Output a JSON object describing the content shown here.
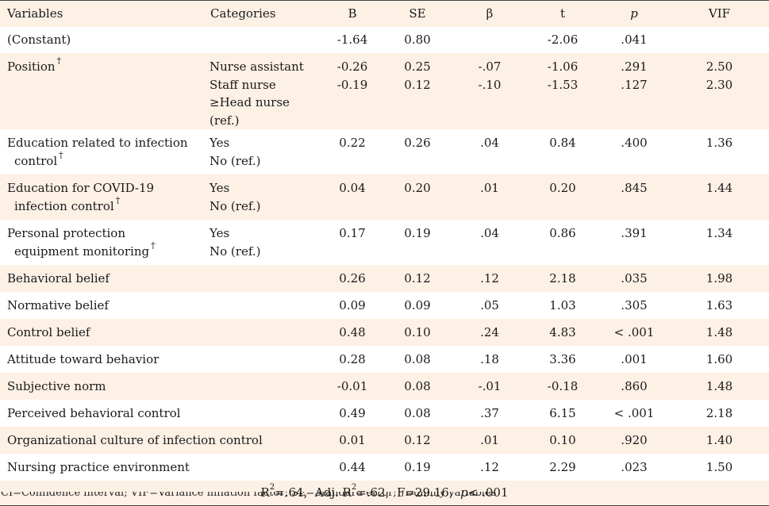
{
  "headers": {
    "variables": "Variables",
    "categories": "Categories",
    "b": "B",
    "se": "SE",
    "beta": "β",
    "t": "t",
    "p": "p",
    "vif": "VIF"
  },
  "dagger": "†",
  "rows": {
    "constant": {
      "label": "(Constant)",
      "b": "-1.64",
      "se": "0.80",
      "t": "-2.06",
      "p": ".041"
    },
    "position": {
      "label": "Position",
      "cat1": "Nurse assistant",
      "b1": "-0.26",
      "se1": "0.25",
      "beta1": "-.07",
      "t1": "-1.06",
      "p1": ".291",
      "vif1": "2.50",
      "cat2": "Staff nurse",
      "b2": "-0.19",
      "se2": "0.12",
      "beta2": "-.10",
      "t2": "-1.53",
      "p2": ".127",
      "vif2": "2.30",
      "cat3": "≥Head nurse (ref.)"
    },
    "edu_infection": {
      "label1": "Education related to infection",
      "label2": "control",
      "cat1": "Yes",
      "cat2": "No (ref.)",
      "b": "0.22",
      "se": "0.26",
      "beta": ".04",
      "t": "0.84",
      "p": ".400",
      "vif": "1.36"
    },
    "edu_covid": {
      "label1": "Education for COVID-19",
      "label2": "infection control",
      "cat1": "Yes",
      "cat2": "No (ref.)",
      "b": "0.04",
      "se": "0.20",
      "beta": ".01",
      "t": "0.20",
      "p": ".845",
      "vif": "1.44"
    },
    "ppe": {
      "label1": "Personal protection",
      "label2": "equipment monitoring",
      "cat1": "Yes",
      "cat2": "No (ref.)",
      "b": "0.17",
      "se": "0.19",
      "beta": ".04",
      "t": "0.86",
      "p": ".391",
      "vif": "1.34"
    },
    "behavioral_belief": {
      "label": "Behavioral belief",
      "b": "0.26",
      "se": "0.12",
      "beta": ".12",
      "t": "2.18",
      "p": ".035",
      "vif": "1.98"
    },
    "normative_belief": {
      "label": "Normative belief",
      "b": "0.09",
      "se": "0.09",
      "beta": ".05",
      "t": "1.03",
      "p": ".305",
      "vif": "1.63"
    },
    "control_belief": {
      "label": "Control belief",
      "b": "0.48",
      "se": "0.10",
      "beta": ".24",
      "t": "4.83",
      "p": "< .001",
      "vif": "1.48"
    },
    "attitude": {
      "label": "Attitude toward behavior",
      "b": "0.28",
      "se": "0.08",
      "beta": ".18",
      "t": "3.36",
      "p": ".001",
      "vif": "1.60"
    },
    "subjective_norm": {
      "label": "Subjective norm",
      "b": "-0.01",
      "se": "0.08",
      "beta": "-.01",
      "t": "-0.18",
      "p": ".860",
      "vif": "1.48"
    },
    "pbc": {
      "label": "Perceived behavioral control",
      "b": "0.49",
      "se": "0.08",
      "beta": ".37",
      "t": "6.15",
      "p": "< .001",
      "vif": "2.18"
    },
    "org_culture": {
      "label": "Organizational culture of infection control",
      "b": "0.01",
      "se": "0.12",
      "beta": ".01",
      "t": "0.10",
      "p": ".920",
      "vif": "1.40"
    },
    "nursing_env": {
      "label": "Nursing practice environment",
      "b": "0.44",
      "se": "0.19",
      "beta": ".12",
      "t": "2.29",
      "p": ".023",
      "vif": "1.50"
    }
  },
  "summary": {
    "r2_prefix": "R",
    "r2_exp": "2",
    "r2_value": "=.64,",
    "adj_prefix": "Adj. R",
    "adj_exp": "2",
    "adj_value": "=.62,",
    "f": "F=29.16,",
    "p_label": "p",
    "p_value": "< .001"
  },
  "footnote_cut": "CI=Confidence interval; VIF=Variance inflation factor; SE=Standard error; †Dummy variables"
}
